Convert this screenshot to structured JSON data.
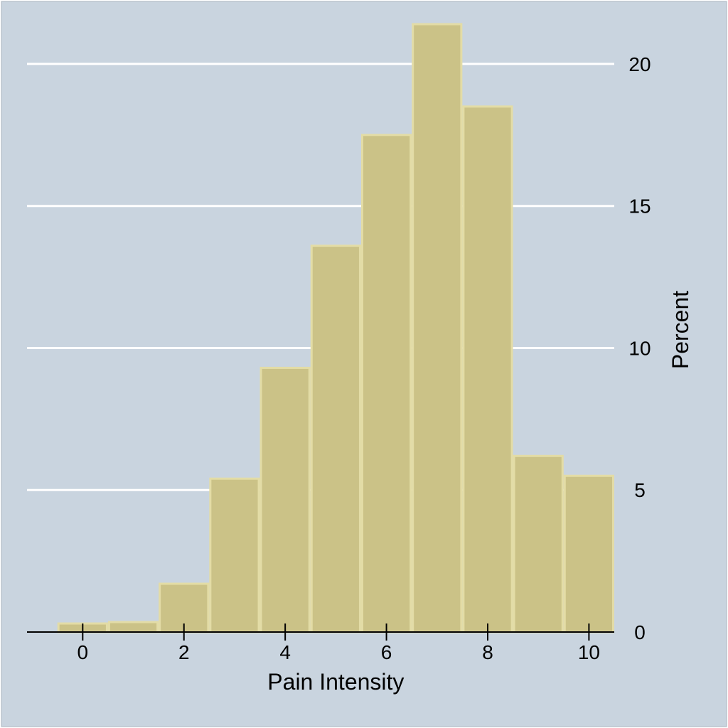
{
  "colors": {
    "background": "#c9d4df",
    "bar_fill": "#cbc287",
    "bar_stroke": "#e3dca6",
    "gridline": "#ffffff",
    "axis": "#000000"
  },
  "chart_data": {
    "type": "bar",
    "subtype": "histogram",
    "xlabel": "Pain Intensity",
    "ylabel": "Percent",
    "y_axis_side": "right",
    "grid": "horizontal",
    "legend": "none",
    "xlim": [
      -1.1,
      10.5
    ],
    "ylim": [
      0,
      21.5
    ],
    "x_ticks": [
      0,
      2,
      4,
      6,
      8,
      10
    ],
    "y_ticks": [
      0,
      5,
      10,
      15,
      20
    ],
    "bin_width": 1,
    "categories": [
      0,
      1,
      2,
      3,
      4,
      5,
      6,
      7,
      8,
      9,
      10
    ],
    "values": [
      0.3,
      0.35,
      1.7,
      5.4,
      9.3,
      13.6,
      17.5,
      21.4,
      18.5,
      6.2,
      5.5
    ]
  }
}
